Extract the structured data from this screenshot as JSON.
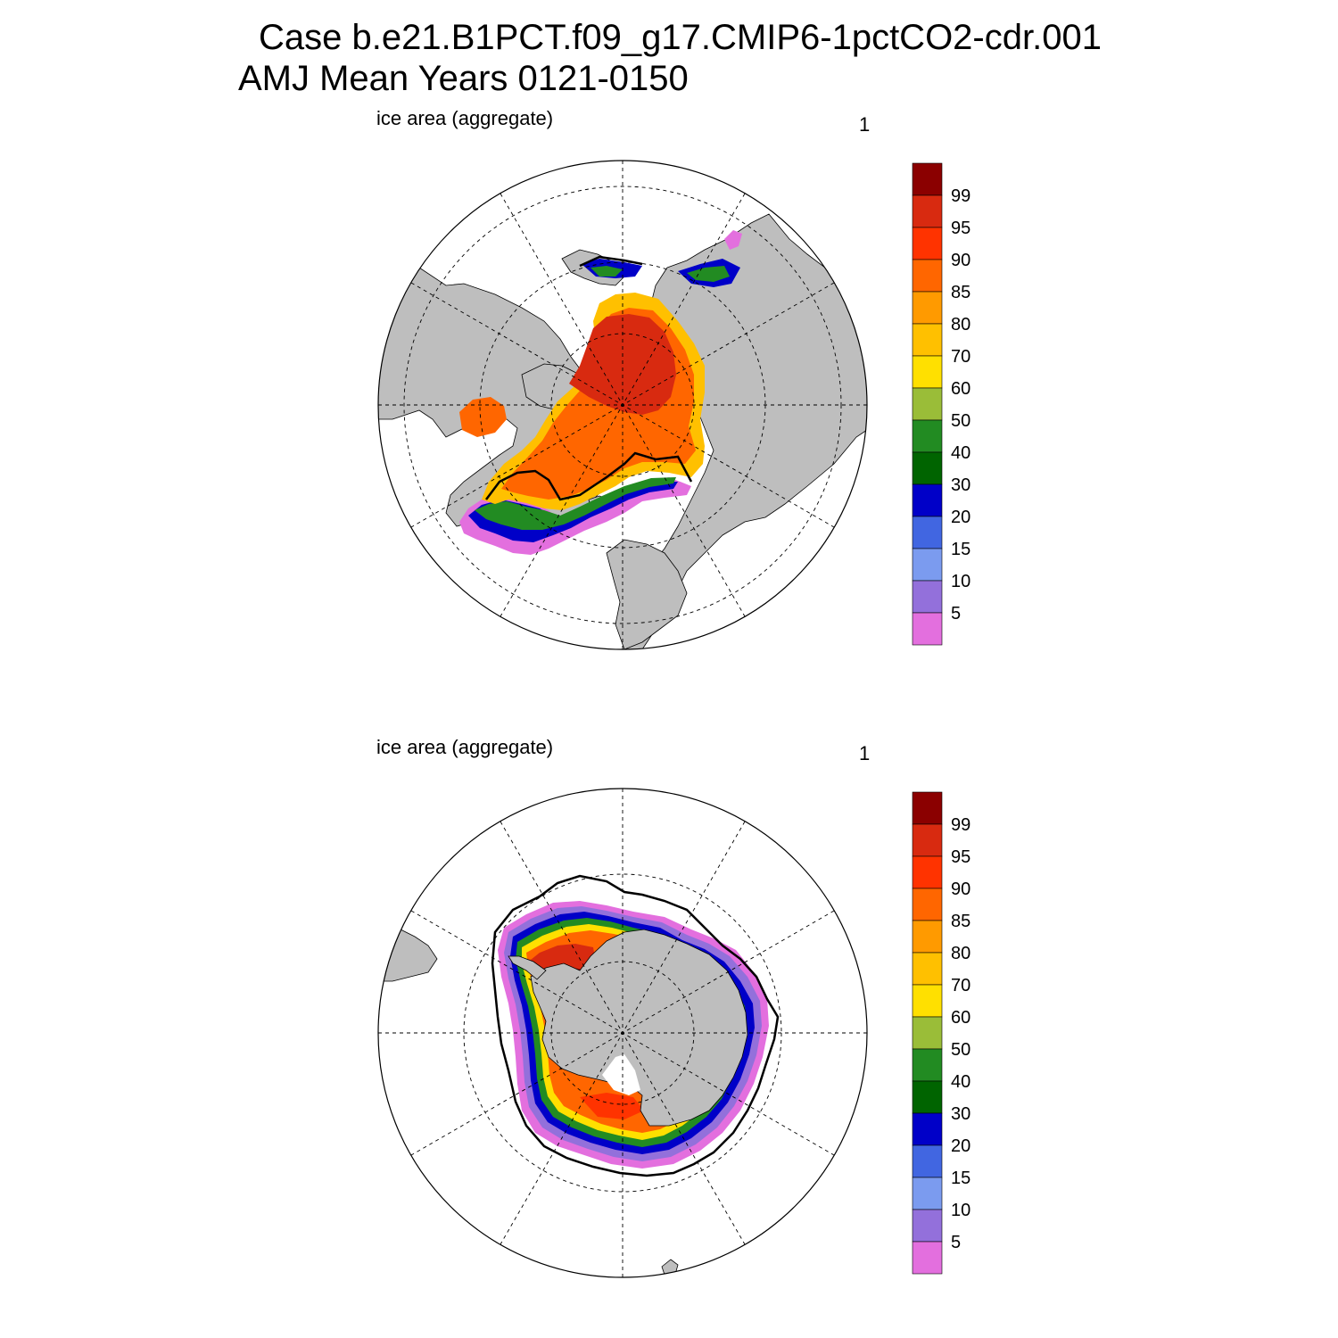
{
  "header": {
    "line1": "Case b.e21.B1PCT.f09_g17.CMIP6-1pctCO2-cdr.001",
    "line2": "AMJ Mean   Years 0121-0150"
  },
  "colorbar": {
    "levels": [
      "5",
      "10",
      "15",
      "20",
      "30",
      "40",
      "50",
      "60",
      "70",
      "80",
      "85",
      "90",
      "95",
      "99"
    ],
    "colors": [
      "#e36fde",
      "#9370db",
      "#7b9bef",
      "#4166e1",
      "#0000c8",
      "#006400",
      "#228b22",
      "#9abd38",
      "#ffe000",
      "#ffc000",
      "#ff9a00",
      "#ff6600",
      "#ff3300",
      "#d82a10",
      "#8b0000"
    ]
  },
  "land_color": "#bebebe",
  "contour_color": "#000000",
  "panels": [
    {
      "hemisphere": "north",
      "label_left": "ice area  (aggregate)",
      "label_right": "1"
    },
    {
      "hemisphere": "south",
      "label_left": "ice area  (aggregate)",
      "label_right": "1"
    }
  ]
}
